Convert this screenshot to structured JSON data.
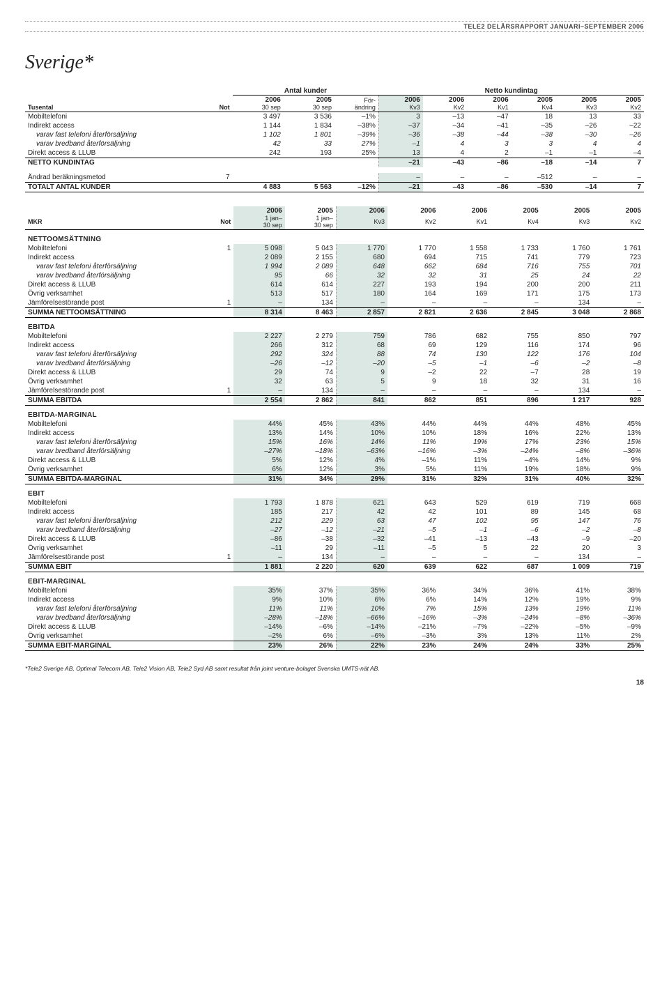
{
  "header": "TELE2 DELÅRSRAPPORT JANUARI–SEPTEMBER 2006",
  "title": "Sverige*",
  "table1": {
    "super": [
      "Antal kunder",
      "Netto kundintag"
    ],
    "years": [
      "2006",
      "2005",
      "För-",
      "2006",
      "2006",
      "2006",
      "2005",
      "2005",
      "2005"
    ],
    "sub": {
      "tusental": "Tusental",
      "not": "Not",
      "s": [
        "30 sep",
        "30 sep",
        "ändring",
        "Kv3",
        "Kv2",
        "Kv1",
        "Kv4",
        "Kv3",
        "Kv2"
      ]
    },
    "rows": [
      {
        "l": "Mobiltelefoni",
        "v": [
          "3 497",
          "3 536",
          "–1%",
          "3",
          "–13",
          "–47",
          "18",
          "13",
          "33"
        ]
      },
      {
        "l": "Indirekt access",
        "v": [
          "1 144",
          "1 834",
          "–38%",
          "–37",
          "–34",
          "–41",
          "–35",
          "–26",
          "–22"
        ]
      },
      {
        "l": "varav fast telefoni återförsäljning",
        "i": 1,
        "v": [
          "1 102",
          "1 801",
          "–39%",
          "–36",
          "–38",
          "–44",
          "–38",
          "–30",
          "–26"
        ]
      },
      {
        "l": "varav bredband återförsäljning",
        "i": 1,
        "v": [
          "42",
          "33",
          "27%",
          "–1",
          "4",
          "3",
          "3",
          "4",
          "4"
        ]
      },
      {
        "l": "Direkt access & LLUB",
        "v": [
          "242",
          "193",
          "25%",
          "13",
          "4",
          "2",
          "–1",
          "–1",
          "–4"
        ]
      },
      {
        "l": "NETTO KUNDINTAG",
        "b": 1,
        "rt": 1,
        "v": [
          "",
          "",
          "",
          "–21",
          "–43",
          "–86",
          "–18",
          "–14",
          "7"
        ]
      },
      {
        "l": "Ändrad beräkningsmetod",
        "n": "7",
        "pt": 1,
        "v": [
          "",
          "",
          "",
          "–",
          "–",
          "–",
          "–512",
          "–",
          "–"
        ]
      },
      {
        "l": "TOTALT ANTAL KUNDER",
        "b": 1,
        "rt": 1,
        "rb": 1,
        "v": [
          "4 883",
          "5 563",
          "–12%",
          "–21",
          "–43",
          "–86",
          "–530",
          "–14",
          "7"
        ]
      }
    ]
  },
  "table2": {
    "years": [
      "2006",
      "2005",
      "2006",
      "2006",
      "2006",
      "2005",
      "2005",
      "2005"
    ],
    "sub": {
      "mkr": "MKR",
      "not": "Not",
      "s": [
        "1 jan–\n30 sep",
        "1 jan–\n30 sep",
        "Kv3",
        "Kv2",
        "Kv1",
        "Kv4",
        "Kv3",
        "Kv2"
      ]
    },
    "sections": [
      {
        "head": "NETTOOMSÄTTNING",
        "rows": [
          {
            "l": "Mobiltelefoni",
            "n": "1",
            "v": [
              "5 098",
              "5 043",
              "1 770",
              "1 770",
              "1 558",
              "1 733",
              "1 760",
              "1 761"
            ]
          },
          {
            "l": "Indirekt access",
            "v": [
              "2 089",
              "2 155",
              "680",
              "694",
              "715",
              "741",
              "779",
              "723"
            ]
          },
          {
            "l": "varav fast telefoni återförsäljning",
            "i": 1,
            "v": [
              "1 994",
              "2 089",
              "648",
              "662",
              "684",
              "716",
              "755",
              "701"
            ]
          },
          {
            "l": "varav bredband återförsäljning",
            "i": 1,
            "v": [
              "95",
              "66",
              "32",
              "32",
              "31",
              "25",
              "24",
              "22"
            ]
          },
          {
            "l": "Direkt access & LLUB",
            "v": [
              "614",
              "614",
              "227",
              "193",
              "194",
              "200",
              "200",
              "211"
            ]
          },
          {
            "l": "Övrig verksamhet",
            "v": [
              "513",
              "517",
              "180",
              "164",
              "169",
              "171",
              "175",
              "173"
            ]
          },
          {
            "l": "Jämförelsestörande post",
            "n": "1",
            "v": [
              "–",
              "134",
              "–",
              "–",
              "–",
              "–",
              "134",
              "–"
            ]
          },
          {
            "l": "SUMMA NETTOOMSÄTTNING",
            "b": 1,
            "rt": 1,
            "rb": 1,
            "v": [
              "8 314",
              "8 463",
              "2 857",
              "2 821",
              "2 636",
              "2 845",
              "3 048",
              "2 868"
            ]
          }
        ]
      },
      {
        "head": "EBITDA",
        "rows": [
          {
            "l": "Mobiltelefoni",
            "v": [
              "2 227",
              "2 279",
              "759",
              "786",
              "682",
              "755",
              "850",
              "797"
            ]
          },
          {
            "l": "Indirekt access",
            "v": [
              "266",
              "312",
              "68",
              "69",
              "129",
              "116",
              "174",
              "96"
            ]
          },
          {
            "l": "varav fast telefoni återförsäljning",
            "i": 1,
            "v": [
              "292",
              "324",
              "88",
              "74",
              "130",
              "122",
              "176",
              "104"
            ]
          },
          {
            "l": "varav bredband återförsäljning",
            "i": 1,
            "v": [
              "–26",
              "–12",
              "–20",
              "–5",
              "–1",
              "–6",
              "–2",
              "–8"
            ]
          },
          {
            "l": "Direkt access & LLUB",
            "v": [
              "29",
              "74",
              "9",
              "–2",
              "22",
              "–7",
              "28",
              "19"
            ]
          },
          {
            "l": "Övrig verksamhet",
            "v": [
              "32",
              "63",
              "5",
              "9",
              "18",
              "32",
              "31",
              "16"
            ]
          },
          {
            "l": "Jämförelsestörande post",
            "n": "1",
            "v": [
              "–",
              "134",
              "–",
              "–",
              "–",
              "–",
              "134",
              "–"
            ]
          },
          {
            "l": "SUMMA EBITDA",
            "b": 1,
            "rt": 1,
            "rb": 1,
            "v": [
              "2 554",
              "2 862",
              "841",
              "862",
              "851",
              "896",
              "1 217",
              "928"
            ]
          }
        ]
      },
      {
        "head": "EBITDA-MARGINAL",
        "rows": [
          {
            "l": "Mobiltelefoni",
            "v": [
              "44%",
              "45%",
              "43%",
              "44%",
              "44%",
              "44%",
              "48%",
              "45%"
            ]
          },
          {
            "l": "Indirekt access",
            "v": [
              "13%",
              "14%",
              "10%",
              "10%",
              "18%",
              "16%",
              "22%",
              "13%"
            ]
          },
          {
            "l": "varav fast telefoni återförsäljning",
            "i": 1,
            "v": [
              "15%",
              "16%",
              "14%",
              "11%",
              "19%",
              "17%",
              "23%",
              "15%"
            ]
          },
          {
            "l": "varav bredband återförsäljning",
            "i": 1,
            "v": [
              "–27%",
              "–18%",
              "–63%",
              "–16%",
              "–3%",
              "–24%",
              "–8%",
              "–36%"
            ]
          },
          {
            "l": "Direkt access & LLUB",
            "v": [
              "5%",
              "12%",
              "4%",
              "–1%",
              "11%",
              "–4%",
              "14%",
              "9%"
            ]
          },
          {
            "l": "Övrig verksamhet",
            "v": [
              "6%",
              "12%",
              "3%",
              "5%",
              "11%",
              "19%",
              "18%",
              "9%"
            ]
          },
          {
            "l": "SUMMA EBITDA-MARGINAL",
            "b": 1,
            "rt": 1,
            "rb": 1,
            "v": [
              "31%",
              "34%",
              "29%",
              "31%",
              "32%",
              "31%",
              "40%",
              "32%"
            ]
          }
        ]
      },
      {
        "head": "EBIT",
        "rows": [
          {
            "l": "Mobiltelefoni",
            "v": [
              "1 793",
              "1 878",
              "621",
              "643",
              "529",
              "619",
              "719",
              "668"
            ]
          },
          {
            "l": "Indirekt access",
            "v": [
              "185",
              "217",
              "42",
              "42",
              "101",
              "89",
              "145",
              "68"
            ]
          },
          {
            "l": "varav fast telefoni återförsäljning",
            "i": 1,
            "v": [
              "212",
              "229",
              "63",
              "47",
              "102",
              "95",
              "147",
              "76"
            ]
          },
          {
            "l": "varav bredband återförsäljning",
            "i": 1,
            "v": [
              "–27",
              "–12",
              "–21",
              "–5",
              "–1",
              "–6",
              "–2",
              "–8"
            ]
          },
          {
            "l": "Direkt access & LLUB",
            "v": [
              "–86",
              "–38",
              "–32",
              "–41",
              "–13",
              "–43",
              "–9",
              "–20"
            ]
          },
          {
            "l": "Övrig verksamhet",
            "v": [
              "–11",
              "29",
              "–11",
              "–5",
              "5",
              "22",
              "20",
              "3"
            ]
          },
          {
            "l": "Jämförelsestörande post",
            "n": "1",
            "v": [
              "–",
              "134",
              "–",
              "–",
              "–",
              "–",
              "134",
              "–"
            ]
          },
          {
            "l": "SUMMA EBIT",
            "b": 1,
            "rt": 1,
            "rb": 1,
            "v": [
              "1 881",
              "2 220",
              "620",
              "639",
              "622",
              "687",
              "1 009",
              "719"
            ]
          }
        ]
      },
      {
        "head": "EBIT-MARGINAL",
        "rows": [
          {
            "l": "Mobiltelefoni",
            "v": [
              "35%",
              "37%",
              "35%",
              "36%",
              "34%",
              "36%",
              "41%",
              "38%"
            ]
          },
          {
            "l": "Indirekt access",
            "v": [
              "9%",
              "10%",
              "6%",
              "6%",
              "14%",
              "12%",
              "19%",
              "9%"
            ]
          },
          {
            "l": "varav fast telefoni återförsäljning",
            "i": 1,
            "v": [
              "11%",
              "11%",
              "10%",
              "7%",
              "15%",
              "13%",
              "19%",
              "11%"
            ]
          },
          {
            "l": "varav bredband återförsäljning",
            "i": 1,
            "v": [
              "–28%",
              "–18%",
              "–66%",
              "–16%",
              "–3%",
              "–24%",
              "–8%",
              "–36%"
            ]
          },
          {
            "l": "Direkt access & LLUB",
            "v": [
              "–14%",
              "–6%",
              "–14%",
              "–21%",
              "–7%",
              "–22%",
              "–5%",
              "–9%"
            ]
          },
          {
            "l": "Övrig verksamhet",
            "v": [
              "–2%",
              "6%",
              "–6%",
              "–3%",
              "3%",
              "13%",
              "11%",
              "2%"
            ]
          },
          {
            "l": "SUMMA EBIT-MARGINAL",
            "b": 1,
            "rt": 1,
            "rb": 1,
            "v": [
              "23%",
              "26%",
              "22%",
              "23%",
              "24%",
              "24%",
              "33%",
              "25%"
            ]
          }
        ]
      }
    ]
  },
  "footnote": "*Tele2 Sverige AB, Optimal Telecom AB, Tele2 Vision AB, Tele2 Syd AB samt resultat från joint venture-bolaget Svenska UMTS-nät AB.",
  "pageno": "18",
  "colors": {
    "highlight": "#dce8e4"
  }
}
